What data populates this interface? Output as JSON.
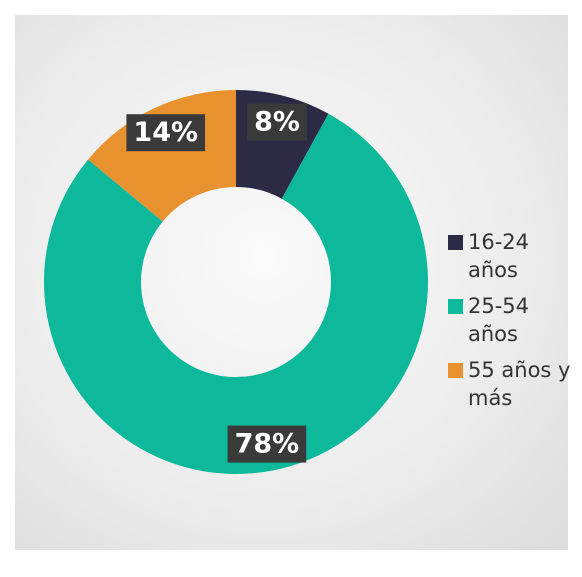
{
  "chart_data": {
    "type": "donut",
    "categories": [
      "16-24 años",
      "25-54 años",
      "55 años y más"
    ],
    "values": [
      8,
      78,
      14
    ],
    "value_labels": [
      "8%",
      "78%",
      "14%"
    ],
    "colors": [
      "#2d2a45",
      "#0db89b",
      "#e8922f"
    ],
    "legend": "right"
  }
}
